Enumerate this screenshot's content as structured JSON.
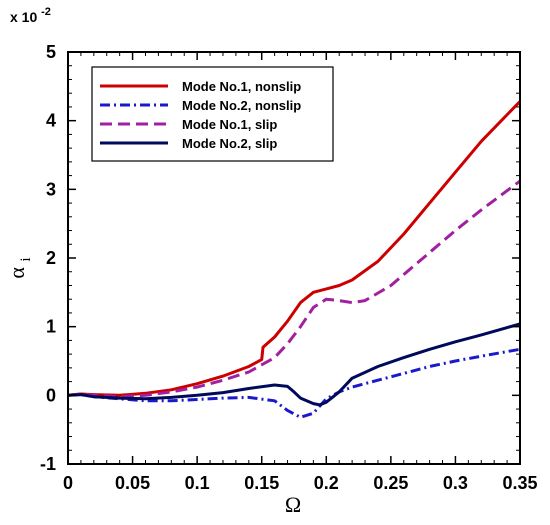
{
  "chart_data": {
    "type": "line",
    "xlabel": "Ω",
    "ylabel": "α",
    "ylabel_subscript": "i",
    "y_scale_note": "x 10",
    "y_scale_exponent": "-2",
    "xlim": [
      0,
      0.35
    ],
    "ylim": [
      -1,
      5
    ],
    "x_ticks": [
      0,
      0.05,
      0.1,
      0.15,
      0.2,
      0.25,
      0.3,
      0.35
    ],
    "x_tick_labels": [
      "0",
      "0.05",
      "0.1",
      "0.15",
      "0.2",
      "0.25",
      "0.3",
      "0.35"
    ],
    "y_ticks": [
      -1,
      0,
      1,
      2,
      3,
      4,
      5
    ],
    "y_tick_labels": [
      "-1",
      "0",
      "1",
      "2",
      "3",
      "4",
      "5"
    ],
    "grid": false,
    "legend_position": "top-left",
    "series": [
      {
        "name": "Mode No.1, nonslip",
        "color": "#cc0000",
        "dash": "solid",
        "x": [
          0,
          0.01,
          0.02,
          0.04,
          0.06,
          0.08,
          0.1,
          0.12,
          0.14,
          0.15,
          0.151,
          0.16,
          0.17,
          0.18,
          0.19,
          0.2,
          0.21,
          0.22,
          0.24,
          0.26,
          0.28,
          0.3,
          0.32,
          0.35
        ],
        "y": [
          0,
          0.02,
          0.01,
          0.0,
          0.03,
          0.08,
          0.17,
          0.28,
          0.42,
          0.52,
          0.7,
          0.85,
          1.08,
          1.35,
          1.5,
          1.55,
          1.6,
          1.68,
          1.95,
          2.35,
          2.8,
          3.25,
          3.7,
          4.28
        ]
      },
      {
        "name": "Mode No.2, nonslip",
        "color": "#1a1acc",
        "dash": "dashdot",
        "x": [
          0,
          0.01,
          0.02,
          0.04,
          0.06,
          0.08,
          0.1,
          0.12,
          0.14,
          0.16,
          0.17,
          0.18,
          0.19,
          0.2,
          0.21,
          0.22,
          0.24,
          0.26,
          0.28,
          0.3,
          0.32,
          0.35
        ],
        "y": [
          0,
          0.01,
          -0.02,
          -0.05,
          -0.08,
          -0.08,
          -0.06,
          -0.04,
          -0.03,
          -0.08,
          -0.22,
          -0.32,
          -0.26,
          -0.05,
          0.05,
          0.12,
          0.22,
          0.32,
          0.42,
          0.5,
          0.57,
          0.67
        ]
      },
      {
        "name": "Mode No.1, slip",
        "color": "#a020a0",
        "dash": "dash",
        "x": [
          0,
          0.01,
          0.02,
          0.04,
          0.06,
          0.08,
          0.1,
          0.12,
          0.14,
          0.16,
          0.17,
          0.18,
          0.19,
          0.2,
          0.21,
          0.22,
          0.23,
          0.25,
          0.27,
          0.3,
          0.32,
          0.35
        ],
        "y": [
          0,
          0.02,
          0.0,
          -0.02,
          0.0,
          0.05,
          0.12,
          0.22,
          0.34,
          0.55,
          0.75,
          1.0,
          1.28,
          1.4,
          1.38,
          1.35,
          1.38,
          1.6,
          1.92,
          2.4,
          2.7,
          3.12
        ]
      },
      {
        "name": "Mode No.2, slip",
        "color": "#000a5a",
        "dash": "solid",
        "x": [
          0,
          0.01,
          0.02,
          0.04,
          0.06,
          0.08,
          0.1,
          0.12,
          0.14,
          0.16,
          0.17,
          0.175,
          0.18,
          0.19,
          0.195,
          0.2,
          0.21,
          0.22,
          0.24,
          0.26,
          0.28,
          0.3,
          0.32,
          0.35
        ],
        "y": [
          0,
          0.01,
          -0.02,
          -0.04,
          -0.05,
          -0.03,
          0.0,
          0.04,
          0.1,
          0.15,
          0.13,
          0.05,
          -0.04,
          -0.12,
          -0.14,
          -0.1,
          0.05,
          0.25,
          0.42,
          0.55,
          0.67,
          0.78,
          0.88,
          1.04
        ]
      }
    ]
  }
}
